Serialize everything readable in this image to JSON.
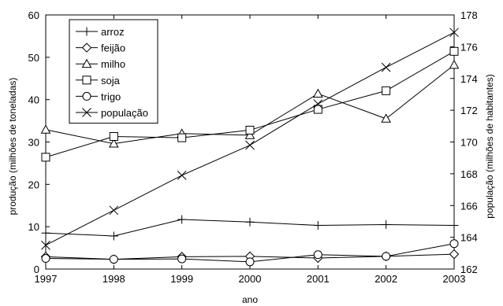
{
  "chart_data": {
    "type": "line",
    "title": "",
    "xlabel": "ano",
    "ylabel_left": "produção (milhões de toneladas)",
    "ylabel_right": "população (milhões de habitantes)",
    "x": [
      1997,
      1998,
      1999,
      2000,
      2001,
      2002,
      2003
    ],
    "x_tick_labels": [
      "1997",
      "1998",
      "1999",
      "2000",
      "2001",
      "2002",
      "2003"
    ],
    "ylim_left": [
      0,
      60
    ],
    "y_left_ticks": [
      0,
      10,
      20,
      30,
      40,
      50,
      60
    ],
    "ylim_right": [
      162,
      178
    ],
    "y_right_ticks": [
      162,
      164,
      166,
      168,
      170,
      172,
      174,
      176,
      178
    ],
    "grid": false,
    "legend_position": "top-left",
    "series": [
      {
        "name": "arroz",
        "marker": "plus",
        "axis": "left",
        "values": [
          8.5,
          7.8,
          11.7,
          11.1,
          10.3,
          10.5,
          10.3
        ]
      },
      {
        "name": "feijão",
        "marker": "diamond",
        "axis": "left",
        "values": [
          2.9,
          2.3,
          2.9,
          3.0,
          2.6,
          3.0,
          3.5
        ]
      },
      {
        "name": "milho",
        "marker": "triangle",
        "axis": "left",
        "values": [
          32.9,
          29.6,
          32.0,
          31.6,
          41.4,
          35.5,
          48.2
        ]
      },
      {
        "name": "soja",
        "marker": "square",
        "axis": "left",
        "values": [
          26.4,
          31.3,
          31.0,
          32.8,
          37.7,
          42.1,
          51.4
        ]
      },
      {
        "name": "trigo",
        "marker": "circle",
        "axis": "left",
        "values": [
          2.5,
          2.3,
          2.4,
          1.7,
          3.4,
          3.0,
          6.0
        ]
      },
      {
        "name": "população",
        "marker": "x",
        "axis": "right",
        "values": [
          163.5,
          165.7,
          167.9,
          169.8,
          172.4,
          174.7,
          176.9
        ]
      }
    ]
  }
}
